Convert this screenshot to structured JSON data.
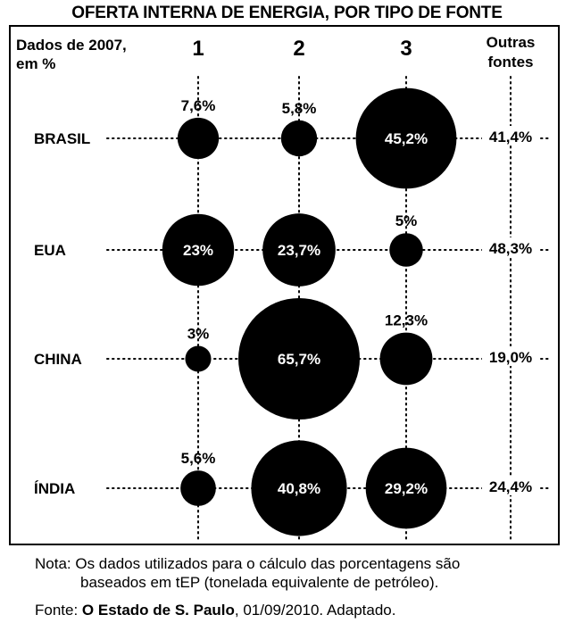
{
  "chart_data": {
    "type": "bubble-matrix",
    "title": "OFERTA INTERNA  DE ENERGIA, POR TIPO DE FONTE",
    "units_label": [
      "Dados de 2007,",
      "em %"
    ],
    "columns": [
      "1",
      "2",
      "3"
    ],
    "other_column_label": [
      "Outras",
      "fontes"
    ],
    "rows": [
      {
        "country": "BRASIL",
        "values": [
          7.6,
          5.8,
          45.2
        ],
        "labels": [
          "7,6%",
          "5,8%",
          "45,2%"
        ],
        "other": "41,4%"
      },
      {
        "country": "EUA",
        "values": [
          23,
          23.7,
          5
        ],
        "labels": [
          "23%",
          "23,7%",
          "5%"
        ],
        "other": "48,3%"
      },
      {
        "country": "CHINA",
        "values": [
          3,
          65.7,
          12.3
        ],
        "labels": [
          "3%",
          "65,7%",
          "12,3%"
        ],
        "other": "19,0%"
      },
      {
        "country": "ÍNDIA",
        "values": [
          5.6,
          40.8,
          29.2
        ],
        "labels": [
          "5,6%",
          "40,8%",
          "29,2%"
        ],
        "other": "24,4%"
      }
    ]
  },
  "note": {
    "line1": "Nota: Os dados utilizados para o cálculo das porcentagens são",
    "line2": "baseados em tEP (tonelada equivalente de petróleo)."
  },
  "source": {
    "prefix": "Fonte: ",
    "publication": "O Estado de S. Paulo",
    "suffix": ", 01/09/2010. Adaptado."
  }
}
